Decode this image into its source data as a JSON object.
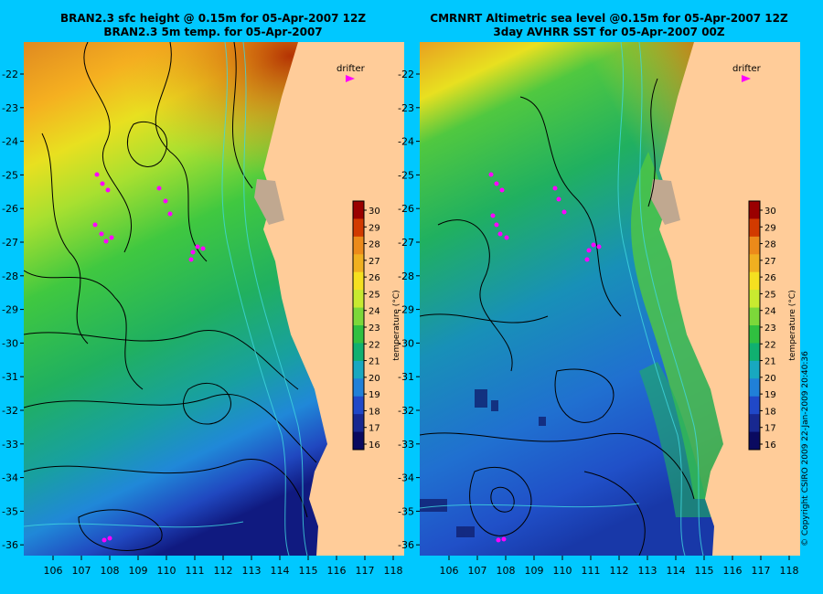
{
  "left_panel": {
    "title_line1": "BRAN2.3 sfc height @ 0.15m for 05-Apr-2007 12Z",
    "title_line2": "BRAN2.3 5m temp. for 05-Apr-2007"
  },
  "right_panel": {
    "title_line1": "CMRNRT Altimetric sea level  @0.15m  for 05-Apr-2007 12Z",
    "title_line2": "3day AVHRR SST for 05-Apr-2007 00Z"
  },
  "drifter_label": "drifter",
  "longitude_ticks": [
    "106",
    "107",
    "108",
    "109",
    "110",
    "111",
    "112",
    "113",
    "114",
    "115",
    "116",
    "117",
    "118"
  ],
  "latitude_ticks": [
    "-22",
    "-23",
    "-24",
    "-25",
    "-26",
    "-27",
    "-28",
    "-29",
    "-30",
    "-31",
    "-32",
    "-33",
    "-34",
    "-35",
    "-36"
  ],
  "colorbar": {
    "label": "temperature (°C)",
    "ticks": [
      "30",
      "29",
      "28",
      "27",
      "26",
      "25",
      "24",
      "23",
      "22",
      "21",
      "20",
      "19",
      "18",
      "17",
      "16"
    ],
    "colors": [
      "#9a0000",
      "#d23a00",
      "#ec8a1a",
      "#f0b020",
      "#f5e020",
      "#c8ea30",
      "#7cd83a",
      "#30c040",
      "#10b070",
      "#18a8c0",
      "#2080d8",
      "#2048c8",
      "#182890",
      "#0a0a60"
    ]
  },
  "copyright": "© Copyright CSIRO 2009  22-Jan-2009 20:40:36",
  "colors": {
    "background": "#00c8ff",
    "land": "#ffcc99",
    "drifter": "#ff00ff"
  }
}
